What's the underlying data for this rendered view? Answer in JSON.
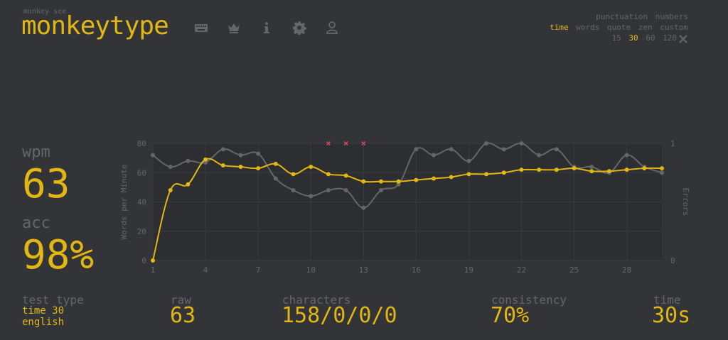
{
  "header": {
    "tagline": "monkey see",
    "brand": "monkeytype",
    "nav_icons": [
      "keyboard-icon",
      "crown-icon",
      "info-icon",
      "gear-icon",
      "user-icon"
    ]
  },
  "config": {
    "row1": [
      "punctuation",
      "numbers"
    ],
    "row2": [
      "time",
      "words",
      "quote",
      "zen",
      "custom"
    ],
    "row2_active": "time",
    "row3": [
      "15",
      "30",
      "60",
      "120"
    ],
    "row3_active": "30",
    "tool_icon": "wrench-icon"
  },
  "result": {
    "wpm_label": "wpm",
    "wpm": "63",
    "acc_label": "acc",
    "acc": "98%",
    "test_type_label": "test type",
    "test_type_line1": "time 30",
    "test_type_line2": "english",
    "raw_label": "raw",
    "raw": "63",
    "characters_label": "characters",
    "characters": "158/0/0/0",
    "consistency_label": "consistency",
    "consistency": "70%",
    "time_label": "time",
    "time": "30s"
  },
  "colors": {
    "bg": "#323437",
    "main": "#e2b714",
    "sub": "#646669",
    "error": "#ca4754",
    "plot_bg": "#2c2e31"
  },
  "chart_data": {
    "type": "line",
    "ylabel": "Words per Minute",
    "y2label": "Errors",
    "ylim": [
      0,
      80
    ],
    "y_ticks": [
      0,
      20,
      40,
      60,
      80
    ],
    "y2_ticks": [
      0,
      1
    ],
    "x_ticks": [
      1,
      4,
      7,
      10,
      13,
      16,
      19,
      22,
      25,
      28
    ],
    "xlim": [
      1,
      30
    ],
    "x": [
      1,
      2,
      3,
      4,
      5,
      6,
      7,
      8,
      9,
      10,
      11,
      12,
      13,
      14,
      15,
      16,
      17,
      18,
      19,
      20,
      21,
      22,
      23,
      24,
      25,
      26,
      27,
      28,
      29,
      30
    ],
    "series": [
      {
        "name": "wpm",
        "color": "#e2b714",
        "values": [
          0,
          48,
          52,
          69,
          65,
          64,
          63,
          66,
          59,
          64,
          59,
          58,
          54,
          54,
          54,
          55,
          56,
          57,
          59,
          59,
          60,
          62,
          62,
          62,
          63,
          61,
          61,
          62,
          63,
          63
        ]
      },
      {
        "name": "raw",
        "color": "#646669",
        "values": [
          72,
          64,
          68,
          67,
          76,
          72,
          73,
          56,
          48,
          44,
          48,
          48,
          36,
          48,
          52,
          76,
          72,
          76,
          68,
          80,
          76,
          80,
          72,
          76,
          64,
          64,
          60,
          72,
          64,
          60
        ]
      }
    ],
    "errors_x": [
      11,
      12,
      13
    ]
  }
}
